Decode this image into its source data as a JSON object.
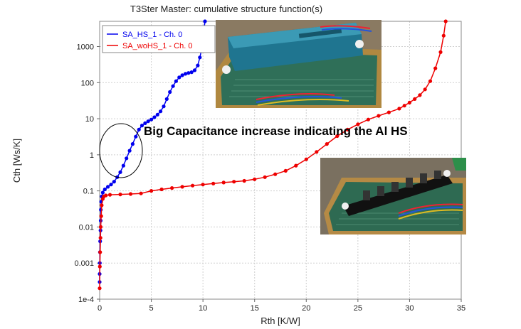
{
  "chart_data": {
    "type": "scatter",
    "title": "T3Ster Master: cumulative structure function(s)",
    "xlabel": "Rth  [K/W]",
    "ylabel": "Cth  [Ws/K]",
    "xlim": [
      0,
      35
    ],
    "ylim": [
      0.0001,
      5000
    ],
    "yscale": "log",
    "grid": true,
    "legend_position": "top-left",
    "x_ticks": [
      0,
      5,
      10,
      15,
      20,
      25,
      30,
      35
    ],
    "x_tick_labels": [
      "0",
      "5",
      "10",
      "15",
      "20",
      "25",
      "30",
      "35"
    ],
    "y_ticks": [
      0.0001,
      0.001,
      0.01,
      0.1,
      1,
      10,
      100,
      1000
    ],
    "y_tick_labels": [
      "1e-4",
      "0.001",
      "0.01",
      "0.1",
      "1",
      "10",
      "100",
      "1000"
    ],
    "series": [
      {
        "name": "SA_HS_1 - Ch. 0",
        "color": "#0000ee",
        "points": [
          [
            0.0,
            0.0003
          ],
          [
            0.0,
            0.0005
          ],
          [
            0.02,
            0.001
          ],
          [
            0.03,
            0.002
          ],
          [
            0.05,
            0.004
          ],
          [
            0.08,
            0.008
          ],
          [
            0.1,
            0.015
          ],
          [
            0.12,
            0.03
          ],
          [
            0.15,
            0.05
          ],
          [
            0.2,
            0.07
          ],
          [
            0.3,
            0.09
          ],
          [
            0.5,
            0.11
          ],
          [
            0.8,
            0.13
          ],
          [
            1.1,
            0.15
          ],
          [
            1.4,
            0.18
          ],
          [
            1.7,
            0.24
          ],
          [
            2.0,
            0.33
          ],
          [
            2.3,
            0.5
          ],
          [
            2.6,
            0.8
          ],
          [
            2.9,
            1.3
          ],
          [
            3.2,
            2.0
          ],
          [
            3.5,
            3.2
          ],
          [
            3.8,
            5.0
          ],
          [
            4.1,
            6.5
          ],
          [
            4.4,
            7.5
          ],
          [
            4.7,
            8.5
          ],
          [
            5.0,
            9.5
          ],
          [
            5.3,
            11
          ],
          [
            5.6,
            13
          ],
          [
            5.9,
            16
          ],
          [
            6.2,
            22
          ],
          [
            6.5,
            35
          ],
          [
            6.8,
            55
          ],
          [
            7.1,
            80
          ],
          [
            7.4,
            110
          ],
          [
            7.7,
            140
          ],
          [
            8.0,
            160
          ],
          [
            8.3,
            175
          ],
          [
            8.6,
            185
          ],
          [
            8.9,
            195
          ],
          [
            9.2,
            220
          ],
          [
            9.5,
            300
          ],
          [
            9.7,
            500
          ],
          [
            9.9,
            900
          ],
          [
            10.0,
            1500
          ],
          [
            10.1,
            3000
          ],
          [
            10.2,
            5000
          ]
        ]
      },
      {
        "name": "SA_woHS_1 - Ch. 0",
        "color": "#ee0000",
        "points": [
          [
            0.0,
            0.0002
          ],
          [
            0.02,
            0.0008
          ],
          [
            0.05,
            0.002
          ],
          [
            0.08,
            0.005
          ],
          [
            0.1,
            0.01
          ],
          [
            0.15,
            0.02
          ],
          [
            0.2,
            0.04
          ],
          [
            0.3,
            0.06
          ],
          [
            0.4,
            0.07
          ],
          [
            0.6,
            0.075
          ],
          [
            1.0,
            0.078
          ],
          [
            2.0,
            0.08
          ],
          [
            3.0,
            0.082
          ],
          [
            4.0,
            0.085
          ],
          [
            5.0,
            0.1
          ],
          [
            6.0,
            0.11
          ],
          [
            7.0,
            0.12
          ],
          [
            8.0,
            0.13
          ],
          [
            9.0,
            0.14
          ],
          [
            10.0,
            0.15
          ],
          [
            11.0,
            0.16
          ],
          [
            12.0,
            0.17
          ],
          [
            13.0,
            0.18
          ],
          [
            14.0,
            0.19
          ],
          [
            15.0,
            0.21
          ],
          [
            16.0,
            0.24
          ],
          [
            17.0,
            0.29
          ],
          [
            18.0,
            0.36
          ],
          [
            19.0,
            0.5
          ],
          [
            20.0,
            0.75
          ],
          [
            21.0,
            1.2
          ],
          [
            22.0,
            2.0
          ],
          [
            23.0,
            3.3
          ],
          [
            24.0,
            5.0
          ],
          [
            25.0,
            7.0
          ],
          [
            26.0,
            9.5
          ],
          [
            27.0,
            12
          ],
          [
            28.0,
            15
          ],
          [
            29.0,
            19
          ],
          [
            29.5,
            23
          ],
          [
            30.0,
            28
          ],
          [
            30.5,
            35
          ],
          [
            31.0,
            45
          ],
          [
            31.5,
            65
          ],
          [
            32.0,
            110
          ],
          [
            32.5,
            250
          ],
          [
            33.0,
            700
          ],
          [
            33.3,
            2000
          ],
          [
            33.5,
            5000
          ]
        ]
      }
    ],
    "annotations": [
      {
        "text": "Big Capacitance increase indicating the Al HS"
      }
    ]
  },
  "photos": [
    {
      "name": "photo-board-with-heatsink",
      "description_icon": "pcb-with-heatsink"
    },
    {
      "name": "photo-board-without-heatsink",
      "description_icon": "pcb-without-heatsink"
    }
  ]
}
